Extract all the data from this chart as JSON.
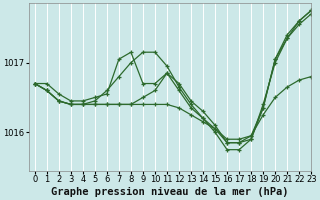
{
  "title": "Graphe pression niveau de la mer (hPa)",
  "bg_color": "#cce8e8",
  "grid_color": "#ffffff",
  "line_color": "#2d6a2d",
  "marker_color": "#2d6a2d",
  "xlim": [
    -0.5,
    23
  ],
  "ylim": [
    1015.45,
    1017.85
  ],
  "yticks": [
    1016,
    1017
  ],
  "xticks": [
    0,
    1,
    2,
    3,
    4,
    5,
    6,
    7,
    8,
    9,
    10,
    11,
    12,
    13,
    14,
    15,
    16,
    17,
    18,
    19,
    20,
    21,
    22,
    23
  ],
  "series": [
    [
      1016.7,
      1016.7,
      1016.55,
      1016.45,
      1016.45,
      1016.5,
      1016.55,
      1017.05,
      1017.15,
      1016.7,
      1016.7,
      1016.85,
      1016.7,
      1016.45,
      1016.3,
      1016.1,
      1015.85,
      1015.85,
      1015.9,
      1016.4,
      1017.0,
      1017.35,
      1017.6,
      1017.75
    ],
    [
      1016.7,
      1016.6,
      1016.45,
      1016.4,
      1016.4,
      1016.4,
      1016.4,
      1016.4,
      1016.4,
      1016.5,
      1016.6,
      1016.85,
      1016.6,
      1016.35,
      1016.2,
      1016.05,
      1015.85,
      1015.85,
      1015.95,
      1016.35,
      1017.05,
      1017.35,
      1017.55,
      1017.7
    ],
    [
      1016.7,
      1016.6,
      1016.45,
      1016.4,
      1016.4,
      1016.4,
      1016.4,
      1016.4,
      1016.4,
      1016.4,
      1016.4,
      1016.4,
      1016.35,
      1016.25,
      1016.15,
      1016.05,
      1015.9,
      1015.9,
      1015.95,
      1016.25,
      1016.5,
      1016.65,
      1016.75,
      1016.8
    ],
    [
      1016.7,
      1016.6,
      1016.45,
      1016.4,
      1016.4,
      1016.45,
      1016.6,
      1016.8,
      1017.0,
      1017.15,
      1017.15,
      1016.95,
      1016.65,
      1016.4,
      1016.2,
      1016.0,
      1015.75,
      1015.75,
      1015.9,
      1016.35,
      1017.05,
      1017.4,
      1017.6,
      1017.75
    ]
  ],
  "title_fontsize": 7.5,
  "tick_fontsize": 6,
  "lw": 0.9
}
